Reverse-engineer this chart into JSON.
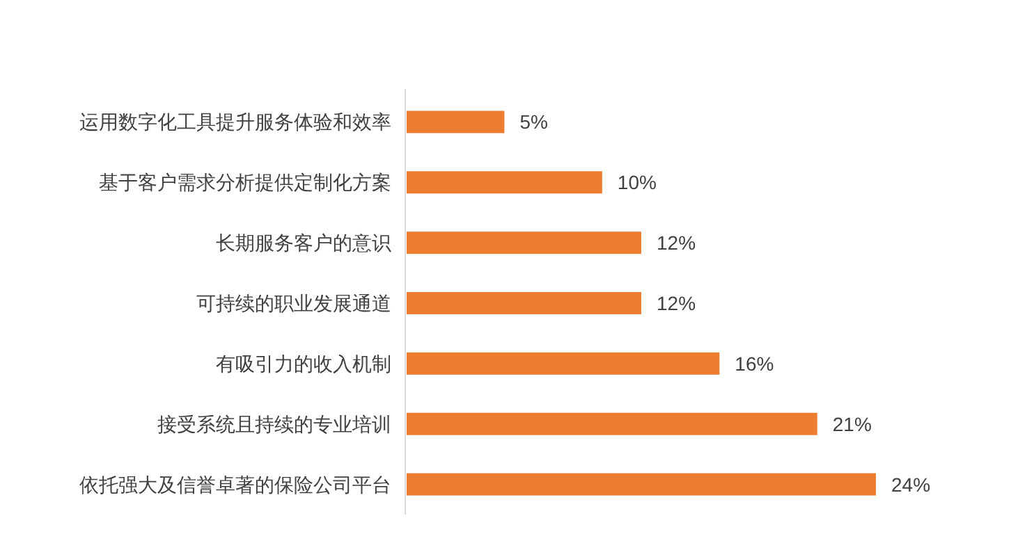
{
  "chart_data": {
    "type": "bar",
    "orientation": "horizontal",
    "categories": [
      "运用数字化工具提升服务体验和效率",
      "基于客户需求分析提供定制化方案",
      "长期服务客户的意识",
      "可持续的职业发展通道",
      "有吸引力的收入机制",
      "接受系统且持续的专业培训",
      "依托强大及信誉卓著的保险公司平台"
    ],
    "values": [
      5,
      10,
      12,
      12,
      16,
      21,
      24
    ],
    "value_labels": [
      "5%",
      "10%",
      "12%",
      "12%",
      "16%",
      "21%",
      "24%"
    ],
    "color": "#ed7d31"
  }
}
